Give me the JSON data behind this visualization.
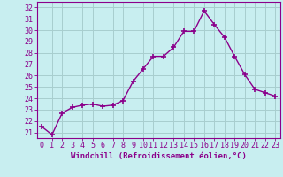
{
  "hours": [
    0,
    1,
    2,
    3,
    4,
    5,
    6,
    7,
    8,
    9,
    10,
    11,
    12,
    13,
    14,
    15,
    16,
    17,
    18,
    19,
    20,
    21,
    22,
    23
  ],
  "values": [
    21.5,
    20.8,
    22.7,
    23.2,
    23.4,
    23.5,
    23.3,
    23.4,
    23.8,
    25.5,
    26.6,
    27.7,
    27.7,
    28.5,
    29.9,
    29.9,
    31.7,
    30.5,
    29.4,
    27.7,
    26.1,
    24.8,
    24.5,
    24.2
  ],
  "line_color": "#8B008B",
  "marker": "+",
  "marker_size": 4,
  "marker_lw": 1.2,
  "line_width": 1.0,
  "bg_color": "#c8eef0",
  "grid_color": "#a8cece",
  "xlabel": "Windchill (Refroidissement éolien,°C)",
  "ylim": [
    20.5,
    32.5
  ],
  "yticks": [
    21,
    22,
    23,
    24,
    25,
    26,
    27,
    28,
    29,
    30,
    31,
    32
  ],
  "xlim": [
    -0.5,
    23.5
  ],
  "axis_color": "#8B008B",
  "tick_color": "#8B008B",
  "label_fontsize": 6.5,
  "tick_fontsize": 6.0
}
